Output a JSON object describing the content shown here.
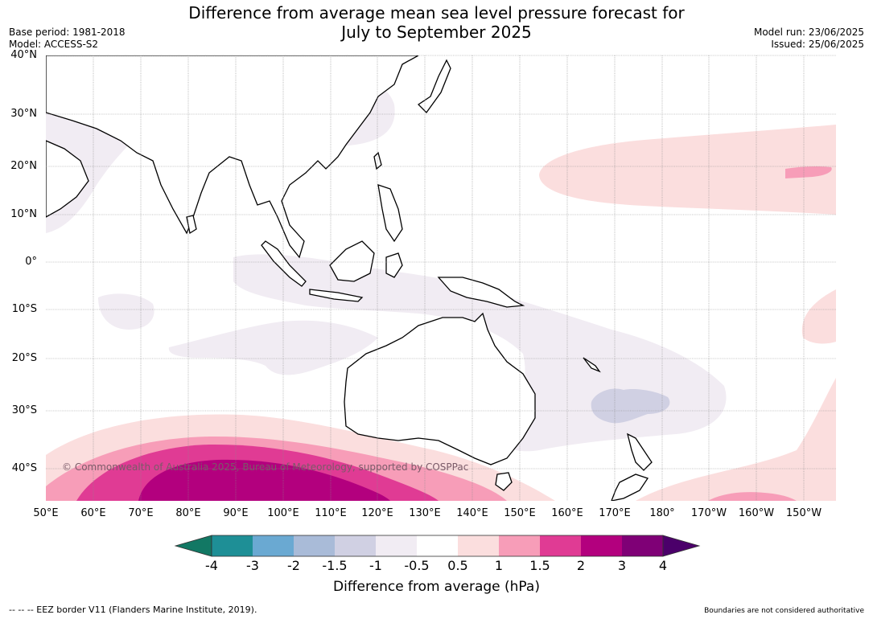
{
  "title_line1": "Difference from average mean sea level pressure forecast for",
  "title_line2": "July to September 2025",
  "base_period": "Base period: 1981-2018",
  "model": "Model: ACCESS-S2",
  "model_run": "Model run: 23/06/2025",
  "issued": "Issued: 25/06/2025",
  "copyright": "© Commonwealth of Australia 2025, Bureau of Meteorology, supported by COSPPac",
  "lat_labels": [
    "40°N",
    "30°N",
    "20°N",
    "10°N",
    "0°",
    "10°S",
    "20°S",
    "30°S",
    "40°S"
  ],
  "lon_labels": [
    "50°E",
    "60°E",
    "70°E",
    "80°E",
    "90°E",
    "100°E",
    "110°E",
    "120°E",
    "130°E",
    "140°E",
    "150°E",
    "160°E",
    "170°E",
    "180°",
    "170°W",
    "160°W",
    "150°W"
  ],
  "colorbar": {
    "title": "Difference from average (hPa)",
    "ticks": [
      "-4",
      "-3",
      "-2",
      "-1.5",
      "-1",
      "-0.5",
      "0.5",
      "1",
      "1.5",
      "2",
      "3",
      "4"
    ],
    "colors": [
      "#127864",
      "#1e8f96",
      "#6aa9d2",
      "#a9bbd8",
      "#d0d0e3",
      "#f1ecf3",
      "#ffffff",
      "#fbdede",
      "#f79db8",
      "#e03b94",
      "#b3007e",
      "#7f0076",
      "#4b006a"
    ]
  },
  "footer_left": "--  --  -- EEZ border V11 (Flanders Marine Institute, 2019).",
  "footer_right": "Boundaries are not considered authoritative"
}
